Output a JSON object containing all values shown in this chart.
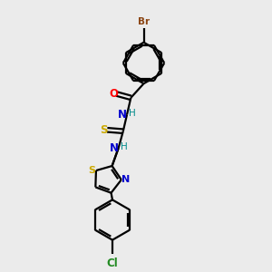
{
  "background_color": "#ebebeb",
  "bond_color": "#000000",
  "atom_colors": {
    "Br": "#8B4513",
    "O": "#FF0000",
    "N": "#0000CD",
    "H": "#008B8B",
    "S": "#ccaa00",
    "Cl": "#228B22"
  },
  "figsize": [
    3.0,
    3.0
  ],
  "dpi": 100
}
